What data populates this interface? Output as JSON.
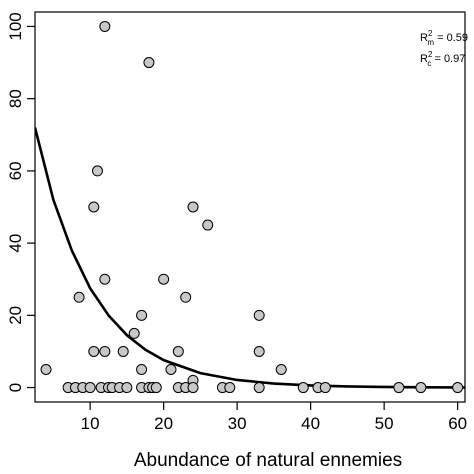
{
  "chart_data": {
    "type": "scatter",
    "title": "",
    "xlabel": "Abundance of natural ennemies",
    "ylabel": "",
    "xlim": [
      2.5,
      61
    ],
    "ylim": [
      -4,
      104
    ],
    "x_ticks": [
      10,
      20,
      30,
      40,
      50,
      60
    ],
    "y_ticks": [
      0,
      20,
      40,
      60,
      80,
      100
    ],
    "grid": false,
    "legend": "none",
    "annotations": {
      "rm": {
        "base": "R",
        "sup": "2",
        "sub": "m",
        "value": " = 0.59"
      },
      "rc": {
        "base": "R",
        "sup": "2",
        "sub": "c",
        "value": " = 0.97"
      }
    },
    "colors": {
      "points_fill": "#c8c8c8",
      "points_stroke": "#000000",
      "curve": "#000000"
    },
    "points": [
      {
        "x": 4,
        "y": 5
      },
      {
        "x": 7,
        "y": 0
      },
      {
        "x": 8,
        "y": 0
      },
      {
        "x": 8.5,
        "y": 25
      },
      {
        "x": 9,
        "y": 0
      },
      {
        "x": 10,
        "y": 0
      },
      {
        "x": 10.5,
        "y": 50
      },
      {
        "x": 10.5,
        "y": 10
      },
      {
        "x": 11,
        "y": 60
      },
      {
        "x": 11.5,
        "y": 0
      },
      {
        "x": 12,
        "y": 100
      },
      {
        "x": 12,
        "y": 30
      },
      {
        "x": 12,
        "y": 10
      },
      {
        "x": 12.5,
        "y": 0
      },
      {
        "x": 13,
        "y": 0
      },
      {
        "x": 14,
        "y": 0
      },
      {
        "x": 14.5,
        "y": 10
      },
      {
        "x": 15,
        "y": 0
      },
      {
        "x": 16,
        "y": 15
      },
      {
        "x": 17,
        "y": 20
      },
      {
        "x": 17,
        "y": 5
      },
      {
        "x": 17,
        "y": 0
      },
      {
        "x": 18,
        "y": 90
      },
      {
        "x": 18,
        "y": 0
      },
      {
        "x": 18.5,
        "y": 0
      },
      {
        "x": 19,
        "y": 0
      },
      {
        "x": 20,
        "y": 30
      },
      {
        "x": 21,
        "y": 5
      },
      {
        "x": 22,
        "y": 10
      },
      {
        "x": 22,
        "y": 0
      },
      {
        "x": 23,
        "y": 25
      },
      {
        "x": 23,
        "y": 0
      },
      {
        "x": 24,
        "y": 50
      },
      {
        "x": 24,
        "y": 2
      },
      {
        "x": 24,
        "y": 0
      },
      {
        "x": 26,
        "y": 45
      },
      {
        "x": 28,
        "y": 0
      },
      {
        "x": 29,
        "y": 0
      },
      {
        "x": 33,
        "y": 20
      },
      {
        "x": 33,
        "y": 10
      },
      {
        "x": 33,
        "y": 0
      },
      {
        "x": 36,
        "y": 5
      },
      {
        "x": 39,
        "y": 0
      },
      {
        "x": 41,
        "y": 0
      },
      {
        "x": 42,
        "y": 0
      },
      {
        "x": 52,
        "y": 0
      },
      {
        "x": 55,
        "y": 0
      },
      {
        "x": 60,
        "y": 0
      }
    ],
    "curve": {
      "x": [
        2.5,
        5,
        7.5,
        10,
        12.5,
        15,
        17.5,
        20,
        25,
        30,
        35,
        40,
        45,
        50,
        55,
        61
      ],
      "y": [
        72,
        52,
        38,
        27.5,
        20,
        14.5,
        10.5,
        7.6,
        4.0,
        2.1,
        1.1,
        0.6,
        0.3,
        0.16,
        0.08,
        0.04
      ]
    }
  }
}
